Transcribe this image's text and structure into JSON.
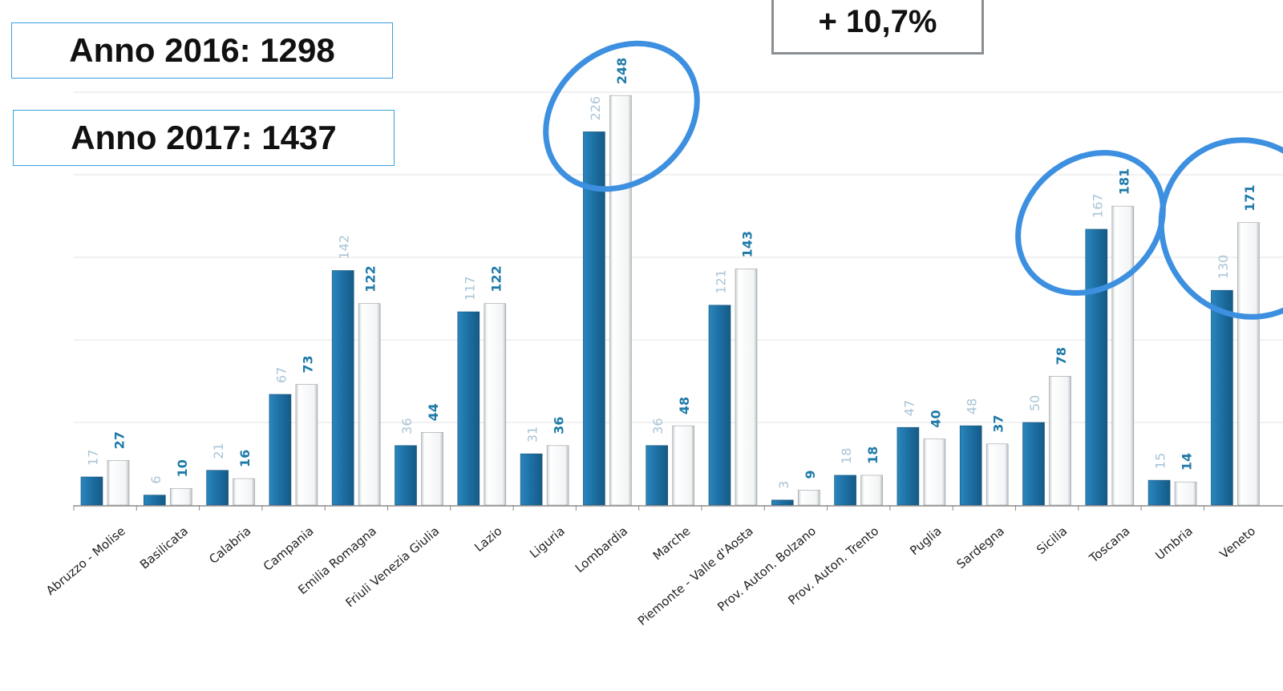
{
  "summary": {
    "year_2016_label": "Anno 2016: 1298",
    "year_2017_label": "Anno 2017: 1437",
    "change_label": "+ 10,7%"
  },
  "colors": {
    "series_2016": "#1d6fa3",
    "series_2017": "#f2f4f5",
    "label_2016": "#a9c4d6",
    "label_2017": "#1f7aa8",
    "highlight_circle": "#3d8fe0",
    "grid": "#e3e3e3"
  },
  "chart_data": {
    "type": "bar",
    "title": "",
    "xlabel": "",
    "ylabel": "",
    "ylim": [
      0,
      280
    ],
    "grid": true,
    "categories": [
      "Abruzzo - Molise",
      "Basilicata",
      "Calabria",
      "Campania",
      "Emilia Romagna",
      "Friuli Venezia Giulia",
      "Lazio",
      "Liguria",
      "Lombardia",
      "Marche",
      "Piemonte - Valle d'Aosta",
      "Prov. Auton. Bolzano",
      "Prov. Auton. Trento",
      "Puglia",
      "Sardegna",
      "Sicilia",
      "Toscana",
      "Umbria",
      "Veneto"
    ],
    "series": [
      {
        "values": [
          17,
          6,
          21,
          67,
          142,
          36,
          117,
          31,
          226,
          36,
          121,
          3,
          18,
          47,
          48,
          50,
          167,
          15,
          130
        ],
        "labels": [
          "17",
          "6",
          "21",
          "67",
          "142",
          "36",
          "117",
          "31",
          "226",
          "36",
          "121",
          "3",
          "18",
          "47",
          "48",
          "50",
          "167",
          "15",
          "130"
        ]
      },
      {
        "values": [
          27,
          10,
          16,
          73,
          122,
          44,
          122,
          36,
          248,
          48,
          143,
          9,
          18,
          40,
          37,
          78,
          181,
          14,
          171
        ],
        "labels": [
          "27",
          "10",
          "16",
          "73",
          "122",
          "44",
          "122",
          "36",
          "248",
          "48",
          "143",
          "9",
          "18",
          "40",
          "37",
          "78",
          "181",
          "14",
          "171"
        ]
      }
    ],
    "highlighted_categories": [
      "Lombardia",
      "Toscana",
      "Veneto"
    ]
  }
}
